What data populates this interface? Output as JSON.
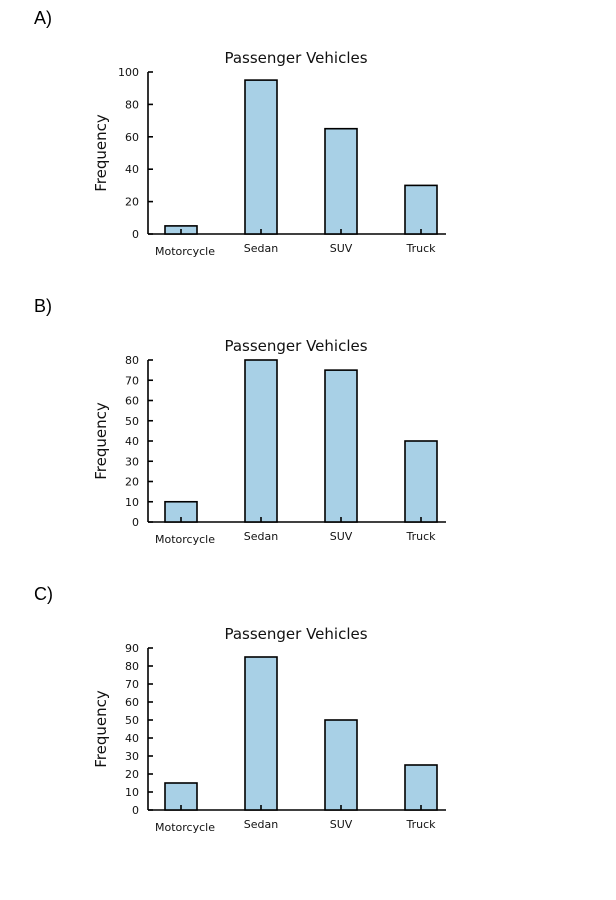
{
  "options": [
    {
      "label": "A)"
    },
    {
      "label": "B)"
    },
    {
      "label": "C)"
    }
  ],
  "colors": {
    "bar_fill": "#a8d0e6",
    "bar_edge": "#000000"
  },
  "chart_data": [
    {
      "type": "bar",
      "title": "Passenger Vehicles",
      "ylabel": "Frequency",
      "xlabel": "",
      "categories": [
        "Motorcycle",
        "Sedan",
        "SUV",
        "Truck"
      ],
      "values": [
        5,
        95,
        65,
        30
      ],
      "ylim": [
        0,
        100
      ],
      "yticks": [
        0,
        20,
        40,
        60,
        80,
        100
      ],
      "grid": false
    },
    {
      "type": "bar",
      "title": "Passenger Vehicles",
      "ylabel": "Frequency",
      "xlabel": "",
      "categories": [
        "Motorcycle",
        "Sedan",
        "SUV",
        "Truck"
      ],
      "values": [
        10,
        80,
        75,
        40
      ],
      "ylim": [
        0,
        80
      ],
      "yticks": [
        0,
        10,
        20,
        30,
        40,
        50,
        60,
        70,
        80
      ],
      "grid": false
    },
    {
      "type": "bar",
      "title": "Passenger Vehicles",
      "ylabel": "Frequency",
      "xlabel": "",
      "categories": [
        "Motorcycle",
        "Sedan",
        "SUV",
        "Truck"
      ],
      "values": [
        15,
        85,
        50,
        25
      ],
      "ylim": [
        0,
        90
      ],
      "yticks": [
        0,
        10,
        20,
        30,
        40,
        50,
        60,
        70,
        80,
        90
      ],
      "grid": false
    }
  ]
}
